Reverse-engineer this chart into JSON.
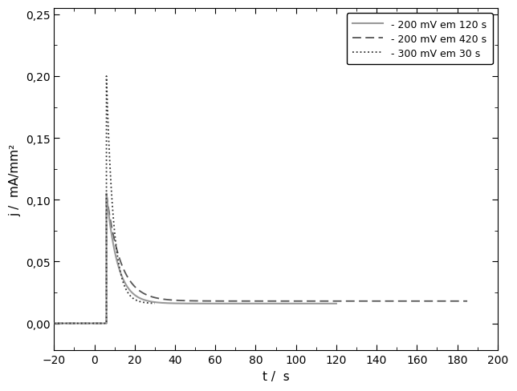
{
  "xlabel": "t /  s",
  "ylabel": "j /  mA/mm²",
  "xlim": [
    -20,
    200
  ],
  "ylim": [
    -0.022,
    0.255
  ],
  "yticks": [
    0.0,
    0.05,
    0.1,
    0.15,
    0.2,
    0.25
  ],
  "xticks": [
    -20,
    0,
    20,
    40,
    60,
    80,
    100,
    120,
    140,
    160,
    180,
    200
  ],
  "legend_labels": [
    " - 200 mV em 120 s",
    " - 200 mV em 420 s",
    " - 300 mV em 30 s"
  ],
  "curve1": {
    "t_step": 6.0,
    "peak": 0.105,
    "tau": 5.5,
    "steady": 0.016,
    "t_end": 120.0,
    "color": "#999999",
    "linestyle": "solid",
    "linewidth": 1.5
  },
  "curve2": {
    "t_step": 6.0,
    "peak": 0.105,
    "tau": 7.0,
    "steady": 0.018,
    "t_end": 185.0,
    "color": "#555555",
    "linestyle": "dashed",
    "linewidth": 1.3,
    "dashes": [
      6,
      3
    ]
  },
  "curve3": {
    "t_step": 6.0,
    "peak": 0.2,
    "tau": 3.5,
    "steady": 0.016,
    "t_end": 30.0,
    "color": "#333333",
    "linestyle": "dotted",
    "linewidth": 1.3
  },
  "background_color": "#ffffff",
  "axis_fontsize": 11,
  "tick_fontsize": 10
}
